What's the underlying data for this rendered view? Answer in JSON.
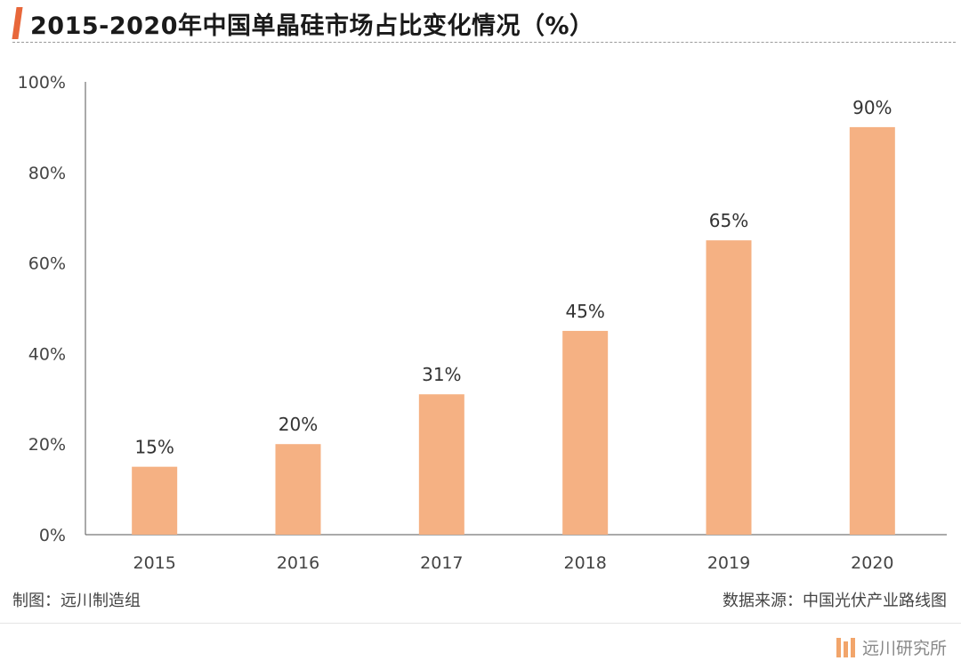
{
  "header": {
    "title": "2015-2020年中国单晶硅市场占比变化情况（%）"
  },
  "chart_data": {
    "type": "bar",
    "title": "2015-2020年中国单晶硅市场占比变化情况（%）",
    "categories": [
      "2015",
      "2016",
      "2017",
      "2018",
      "2019",
      "2020"
    ],
    "values": [
      15,
      20,
      31,
      45,
      65,
      90
    ],
    "data_labels": [
      "15%",
      "20%",
      "31%",
      "45%",
      "65%",
      "90%"
    ],
    "ylim": [
      0,
      100
    ],
    "yticks": [
      0,
      20,
      40,
      60,
      80,
      100
    ],
    "ytick_labels": [
      "0%",
      "20%",
      "40%",
      "60%",
      "80%",
      "100%"
    ],
    "bar_color": "#f5b183",
    "grid": false,
    "legend": "none"
  },
  "footer": {
    "left": "制图：远川制造组",
    "right": "数据来源：中国光伏产业路线图"
  },
  "brand": {
    "name": "远川研究所"
  },
  "colors": {
    "accent": "#e8673a",
    "bar": "#f5b183",
    "logo": "#f2a56b"
  }
}
